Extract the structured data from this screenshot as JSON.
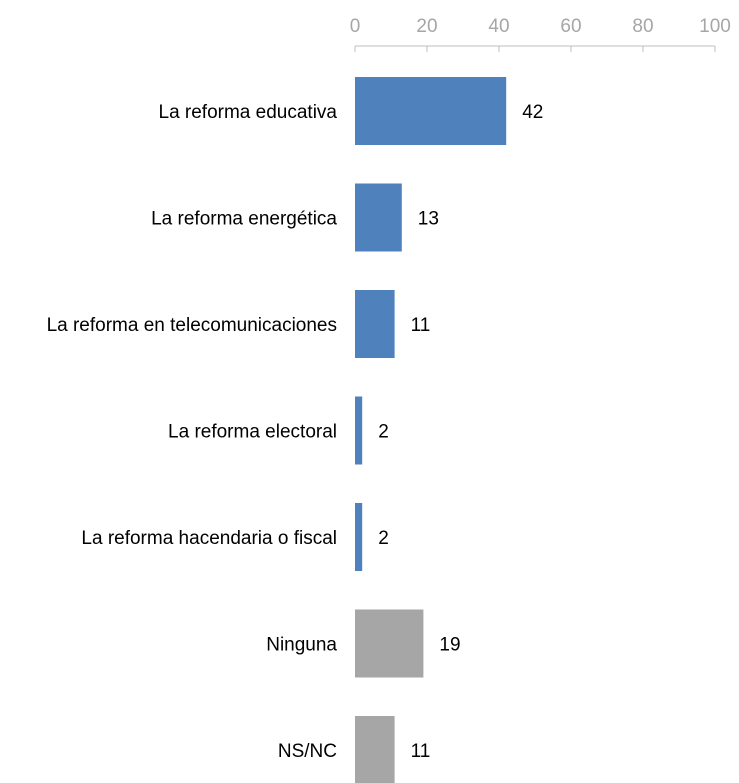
{
  "chart_data": {
    "type": "bar",
    "orientation": "horizontal",
    "title": "",
    "xlabel": "",
    "ylabel": "",
    "categories": [
      "La reforma educativa",
      "La reforma energética",
      "La reforma en telecomunicaciones",
      "La reforma electoral",
      "La reforma hacendaria o fiscal",
      "Ninguna",
      "NS/NC"
    ],
    "values": [
      42,
      13,
      11,
      2,
      2,
      19,
      11
    ],
    "data_labels": [
      "42",
      "13",
      "11",
      "2",
      "2",
      "19",
      "11"
    ],
    "xlim": [
      0,
      100
    ],
    "x_ticks": [
      0,
      20,
      40,
      60,
      80,
      100
    ],
    "x_tick_labels": [
      "0",
      "20",
      "40",
      "60",
      "80",
      "100"
    ],
    "axis_position": "top",
    "grid": false,
    "legend": "none",
    "colors": {
      "reform_bars": "#4f81bd",
      "other_bars": "#a6a6a6",
      "axis": "#bfbfbf",
      "tick_text": "#a6a6a6"
    },
    "bar_colors": [
      "#4f81bd",
      "#4f81bd",
      "#4f81bd",
      "#4f81bd",
      "#4f81bd",
      "#a6a6a6",
      "#a6a6a6"
    ]
  }
}
